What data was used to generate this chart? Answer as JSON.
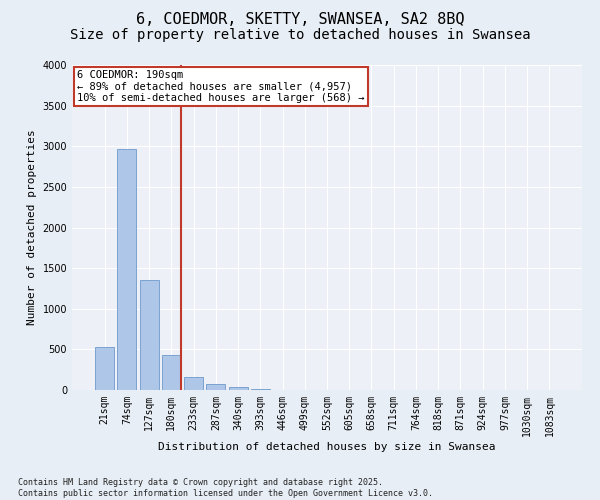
{
  "title": "6, COEDMOR, SKETTY, SWANSEA, SA2 8BQ",
  "subtitle": "Size of property relative to detached houses in Swansea",
  "xlabel": "Distribution of detached houses by size in Swansea",
  "ylabel": "Number of detached properties",
  "bar_labels": [
    "21sqm",
    "74sqm",
    "127sqm",
    "180sqm",
    "233sqm",
    "287sqm",
    "340sqm",
    "393sqm",
    "446sqm",
    "499sqm",
    "552sqm",
    "605sqm",
    "658sqm",
    "711sqm",
    "764sqm",
    "818sqm",
    "871sqm",
    "924sqm",
    "977sqm",
    "1030sqm",
    "1083sqm"
  ],
  "bar_values": [
    530,
    2970,
    1360,
    425,
    155,
    80,
    35,
    15,
    5,
    2,
    1,
    0,
    0,
    0,
    0,
    0,
    0,
    0,
    0,
    0,
    0
  ],
  "bar_color": "#aec6e8",
  "bar_edge_color": "#5b8cc4",
  "highlight_line_index": 3,
  "vline_color": "#c0392b",
  "annotation_text": "6 COEDMOR: 190sqm\n← 89% of detached houses are smaller (4,957)\n10% of semi-detached houses are larger (568) →",
  "annotation_box_color": "#c0392b",
  "ylim": [
    0,
    4000
  ],
  "yticks": [
    0,
    500,
    1000,
    1500,
    2000,
    2500,
    3000,
    3500,
    4000
  ],
  "bg_color": "#e8eef5",
  "plot_bg_color": "#edf1f7",
  "grid_color": "#ffffff",
  "footer": "Contains HM Land Registry data © Crown copyright and database right 2025.\nContains public sector information licensed under the Open Government Licence v3.0.",
  "title_fontsize": 11,
  "subtitle_fontsize": 10,
  "tick_fontsize": 7,
  "axis_label_fontsize": 8,
  "annotation_fontsize": 7.5,
  "footer_fontsize": 6
}
